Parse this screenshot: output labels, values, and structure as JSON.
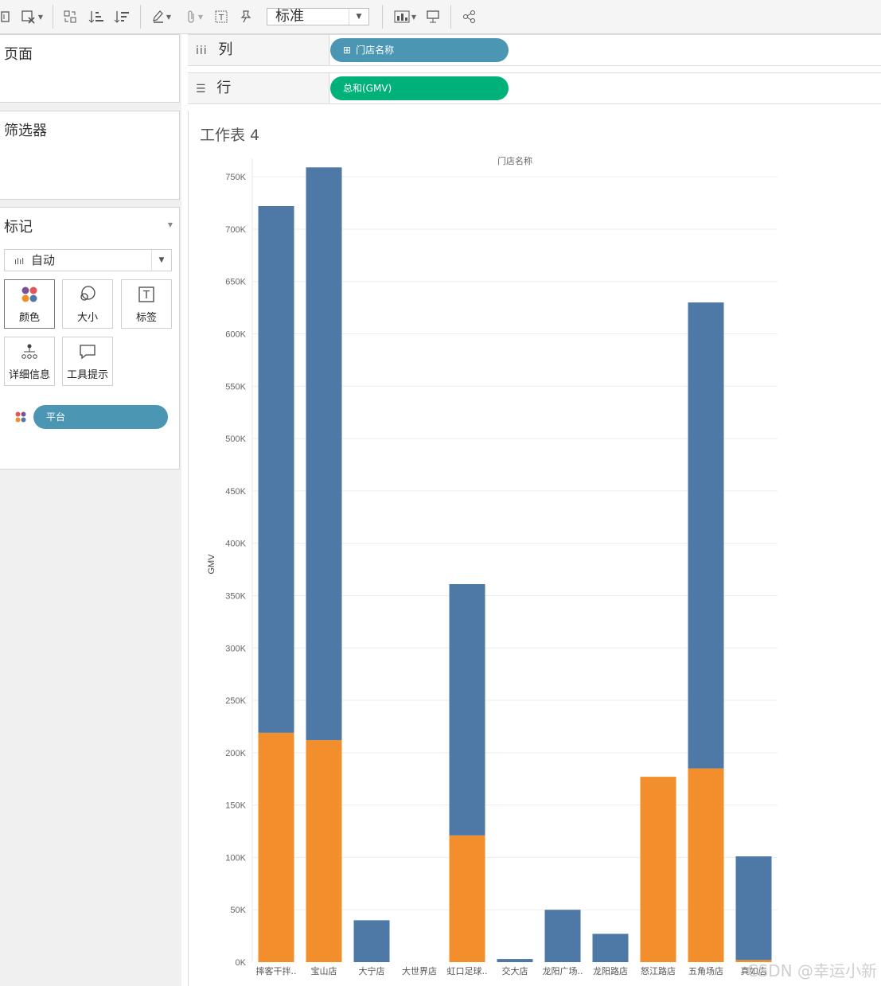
{
  "toolbar": {
    "icons": [
      "mark-icon",
      "clear-sheet-icon",
      "swap-icon",
      "sort-asc-icon",
      "sort-desc-icon",
      "highlight-icon",
      "paperclip-icon",
      "text-icon",
      "pin-icon",
      "show-me-icon",
      "presentation-icon",
      "share-icon"
    ],
    "fit_select": "标准"
  },
  "panes": {
    "pages": "页面",
    "filters": "筛选器",
    "marks": "标记",
    "mark_type": "自动",
    "buttons": [
      "颜色",
      "大小",
      "标签",
      "详细信息",
      "工具提示"
    ],
    "color_pill": "平台"
  },
  "shelves": {
    "columns_label": "列",
    "columns_pill": "门店名称",
    "rows_label": "行",
    "rows_pill": "总和(GMV)"
  },
  "sheet": {
    "title": "工作表 4"
  },
  "chart_data": {
    "type": "bar",
    "stacked": true,
    "title": "门店名称",
    "xlabel": "",
    "ylabel": "GMV",
    "ylim": [
      0,
      760000
    ],
    "yticks": [
      0,
      50000,
      100000,
      150000,
      200000,
      250000,
      300000,
      350000,
      400000,
      450000,
      500000,
      550000,
      600000,
      650000,
      700000,
      750000
    ],
    "ytick_labels": [
      "0K",
      "50K",
      "100K",
      "150K",
      "200K",
      "250K",
      "300K",
      "350K",
      "400K",
      "450K",
      "500K",
      "550K",
      "600K",
      "650K",
      "700K",
      "750K"
    ],
    "grid": true,
    "categories": [
      "摔客干拌..",
      "宝山店",
      "大宁店",
      "大世界店",
      "虹口足球..",
      "交大店",
      "龙阳广场..",
      "龙阳路店",
      "怒江路店",
      "五角场店",
      "真如店"
    ],
    "series": [
      {
        "color": "#f28e2b",
        "values": [
          219000,
          212000,
          0,
          0,
          121000,
          0,
          0,
          0,
          177000,
          185000,
          2000
        ]
      },
      {
        "color": "#4e79a7",
        "values": [
          503000,
          547000,
          40000,
          0,
          240000,
          3000,
          50000,
          27000,
          0,
          445000,
          99000
        ]
      }
    ]
  },
  "watermark": "CSDN @幸运小新"
}
